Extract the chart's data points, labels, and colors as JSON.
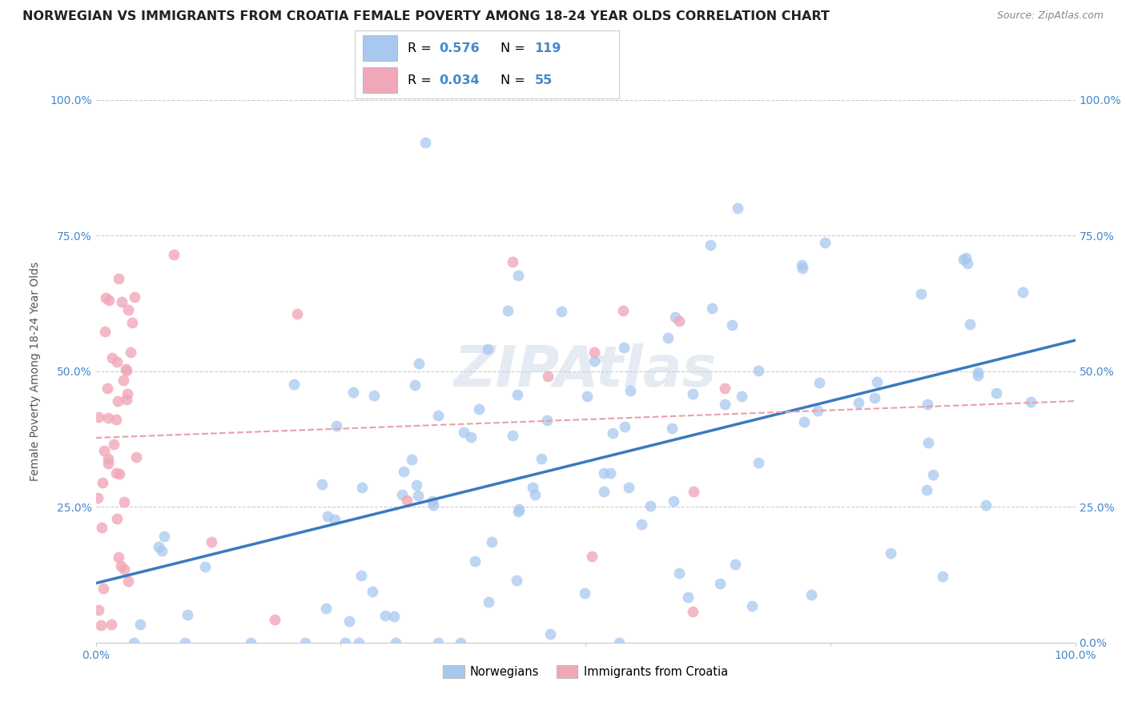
{
  "title": "NORWEGIAN VS IMMIGRANTS FROM CROATIA FEMALE POVERTY AMONG 18-24 YEAR OLDS CORRELATION CHART",
  "source": "Source: ZipAtlas.com",
  "ylabel": "Female Poverty Among 18-24 Year Olds",
  "color_norwegian": "#a8c8f0",
  "color_croatia": "#f0a8b8",
  "line_color_norwegian": "#3a7abf",
  "trendline_color_dashed": "#e8a0a8",
  "legend_r1_val": "0.576",
  "legend_n1_val": "119",
  "legend_r2_val": "0.034",
  "legend_n2_val": "55",
  "watermark_text": "ZIPAtlas",
  "watermark_color": "#ccd8e8",
  "background_color": "#ffffff",
  "grid_color": "#cccccc",
  "tick_color": "#4488cc",
  "title_fontsize": 11.5,
  "axis_label_fontsize": 10,
  "tick_fontsize": 10
}
